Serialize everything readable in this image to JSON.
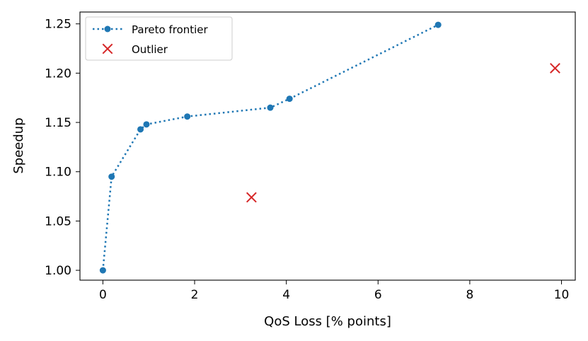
{
  "chart_data": {
    "type": "scatter",
    "title": "",
    "xlabel": "QoS Loss [% points]",
    "ylabel": "Speedup",
    "xlim": [
      -0.5,
      10.3
    ],
    "ylim": [
      0.99,
      1.262
    ],
    "x_ticks": [
      0,
      2,
      4,
      6,
      8,
      10
    ],
    "x_tick_labels": [
      "0",
      "2",
      "4",
      "6",
      "8",
      "10"
    ],
    "y_ticks": [
      1.0,
      1.05,
      1.1,
      1.15,
      1.2,
      1.25
    ],
    "y_tick_labels": [
      "1.00",
      "1.05",
      "1.10",
      "1.15",
      "1.20",
      "1.25"
    ],
    "grid": false,
    "legend_position": "top-left",
    "series": [
      {
        "name": "Pareto frontier",
        "style": "dotted-line-with-dots",
        "color": "#1f77b4",
        "points": [
          {
            "x": 0.0,
            "y": 1.0
          },
          {
            "x": 0.19,
            "y": 1.095
          },
          {
            "x": 0.82,
            "y": 1.143
          },
          {
            "x": 0.95,
            "y": 1.148
          },
          {
            "x": 1.84,
            "y": 1.156
          },
          {
            "x": 3.65,
            "y": 1.165
          },
          {
            "x": 4.07,
            "y": 1.174
          },
          {
            "x": 7.31,
            "y": 1.249
          }
        ]
      },
      {
        "name": "Outlier",
        "style": "x-marker",
        "color": "#d62728",
        "points": [
          {
            "x": 3.24,
            "y": 1.074
          },
          {
            "x": 9.86,
            "y": 1.205
          }
        ]
      }
    ]
  }
}
